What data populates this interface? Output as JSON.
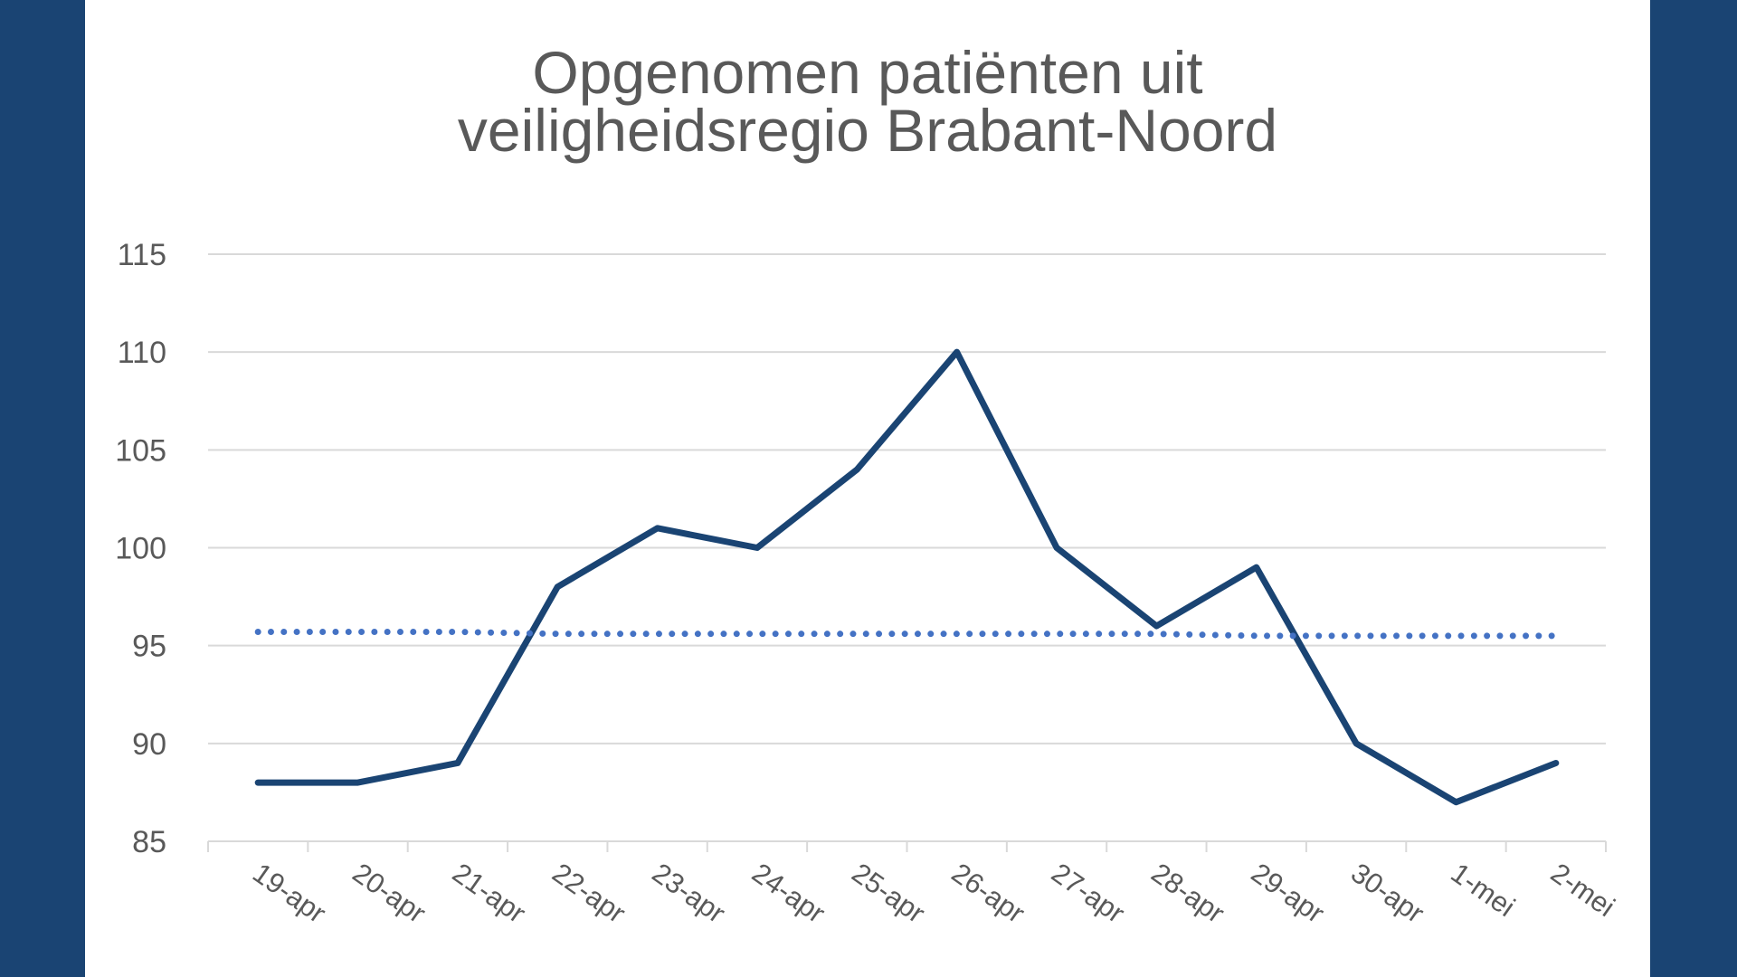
{
  "chart_data": {
    "type": "line",
    "title_lines": [
      "Opgenomen patiënten uit",
      "veiligheidsregio Brabant-Noord"
    ],
    "title": "Opgenomen patiënten uit veiligheidsregio Brabant-Noord",
    "xlabel": "",
    "ylabel": "",
    "categories": [
      "19-apr",
      "20-apr",
      "21-apr",
      "22-apr",
      "23-apr",
      "24-apr",
      "25-apr",
      "26-apr",
      "27-apr",
      "28-apr",
      "29-apr",
      "30-apr",
      "1-mei",
      "2-mei"
    ],
    "ylim": [
      85,
      115
    ],
    "yticks": [
      85,
      90,
      95,
      100,
      105,
      110,
      115
    ],
    "grid": true,
    "legend": "none",
    "series": [
      {
        "values": [
          88,
          88,
          89,
          98,
          101,
          100,
          104,
          110,
          100,
          96,
          99,
          90,
          87,
          89
        ],
        "style": "solid",
        "color": "#1a4473"
      },
      {
        "values": [
          95.7,
          95.7,
          95.7,
          95.6,
          95.6,
          95.6,
          95.6,
          95.6,
          95.6,
          95.6,
          95.5,
          95.5,
          95.5,
          95.5
        ],
        "style": "dotted",
        "color": "#4472c4"
      }
    ]
  },
  "colors": {
    "background": "#1a4473",
    "panel": "#ffffff",
    "grid": "#d9d9d9",
    "text": "#595959"
  }
}
